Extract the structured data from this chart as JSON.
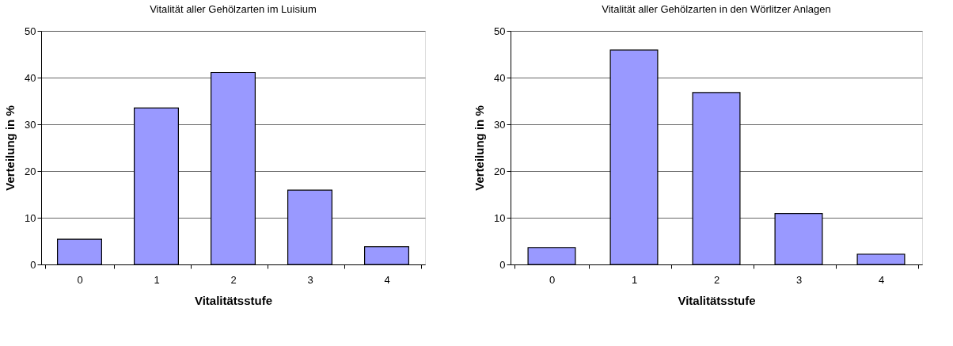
{
  "chart_data": [
    {
      "type": "bar",
      "title": "Vitalität aller Gehölzarten im Luisium",
      "xlabel": "Vitalitätsstufe",
      "ylabel": "Verteilung in %",
      "categories": [
        "0",
        "1",
        "2",
        "3",
        "4"
      ],
      "values": [
        5.4,
        33.5,
        41.1,
        15.9,
        3.8
      ],
      "color": "#9999ff",
      "ylim": [
        0,
        50
      ],
      "yticks": [
        0,
        10,
        20,
        30,
        40,
        50
      ],
      "grid": "y"
    },
    {
      "type": "bar",
      "title": "Vitalität aller Gehölzarten in den Wörlitzer Anlagen",
      "xlabel": "Vitalitätsstufe",
      "ylabel": "Verteilung in %",
      "categories": [
        "0",
        "1",
        "2",
        "3",
        "4"
      ],
      "values": [
        3.6,
        45.9,
        36.8,
        10.9,
        2.2
      ],
      "color": "#9999ff",
      "ylim": [
        0,
        50
      ],
      "yticks": [
        0,
        10,
        20,
        30,
        40,
        50
      ],
      "grid": "y"
    }
  ]
}
